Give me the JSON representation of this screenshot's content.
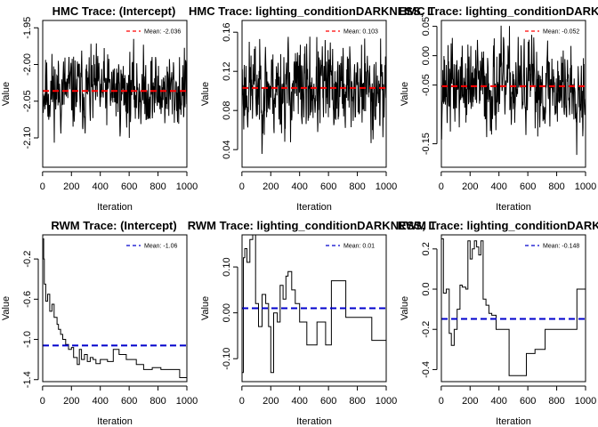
{
  "colors": {
    "hmc_mean": "#ff0000",
    "rwm_mean": "#0000cc",
    "trace": "#000000"
  },
  "chart_data": [
    {
      "type": "line",
      "title": "HMC Trace: (Intercept)",
      "xlabel": "Iteration",
      "ylabel": "Value",
      "xlim": [
        1,
        1000
      ],
      "ylim": [
        -2.14,
        -1.94
      ],
      "xticks": [
        "0",
        "200",
        "400",
        "600",
        "800",
        "1000"
      ],
      "yticks": [
        "-1.95",
        "-2.00",
        "-2.05",
        "-2.10"
      ],
      "ytick_values": [
        -1.95,
        -2.0,
        -2.05,
        -2.1
      ],
      "legend": "Mean: -2.036",
      "mean": -2.036,
      "mean_style": "dashed-red",
      "trace": {
        "kind": "noise",
        "center": -2.036,
        "spread": 0.024,
        "min": -2.135,
        "max": -1.94,
        "seed": 11
      }
    },
    {
      "type": "line",
      "title": "HMC Trace: lighting_conditionDARKNESS, L",
      "xlabel": "Iteration",
      "ylabel": "Value",
      "xlim": [
        1,
        1000
      ],
      "ylim": [
        0.022,
        0.172
      ],
      "xticks": [
        "0",
        "200",
        "400",
        "600",
        "800",
        "1000"
      ],
      "yticks": [
        "0.04",
        "0.08",
        "0.12",
        "0.16"
      ],
      "ytick_values": [
        0.04,
        0.08,
        0.12,
        0.16
      ],
      "legend": "Mean: 0.103",
      "mean": 0.103,
      "mean_style": "dashed-red",
      "trace": {
        "kind": "noise",
        "center": 0.103,
        "spread": 0.022,
        "min": 0.028,
        "max": 0.168,
        "seed": 23
      }
    },
    {
      "type": "line",
      "title": "HMC Trace: lighting_conditionDARKNESS, L",
      "xlabel": "Iteration",
      "ylabel": "Value",
      "xlim": [
        1,
        1000
      ],
      "ylim": [
        -0.19,
        0.06
      ],
      "xticks": [
        "0",
        "200",
        "400",
        "600",
        "800",
        "1000"
      ],
      "yticks": [
        "-0.15",
        "-0.05",
        "0.00",
        "0.05"
      ],
      "ytick_values": [
        -0.15,
        -0.05,
        0.0,
        0.05
      ],
      "legend": "Mean: -0.052",
      "mean": -0.052,
      "mean_style": "dashed-red",
      "trace": {
        "kind": "noise",
        "center": -0.052,
        "spread": 0.035,
        "min": -0.185,
        "max": 0.055,
        "seed": 37
      }
    },
    {
      "type": "line",
      "title": "RWM Trace: (Intercept)",
      "xlabel": "Iteration",
      "ylabel": "Value",
      "xlim": [
        1,
        1000
      ],
      "ylim": [
        -1.42,
        0.04
      ],
      "xticks": [
        "0",
        "200",
        "400",
        "600",
        "800",
        "1000"
      ],
      "yticks": [
        "-0.2",
        "-0.6",
        "-1.0",
        "-1.4"
      ],
      "ytick_values": [
        -0.2,
        -0.6,
        -1.0,
        -1.4
      ],
      "legend": "Mean: -1.06",
      "mean": -1.06,
      "mean_style": "dashed-blue",
      "trace": {
        "kind": "steps",
        "points": [
          [
            1,
            0.0
          ],
          [
            8,
            -0.2
          ],
          [
            12,
            -0.45
          ],
          [
            22,
            -0.62
          ],
          [
            35,
            -0.55
          ],
          [
            50,
            -0.72
          ],
          [
            65,
            -0.65
          ],
          [
            80,
            -0.78
          ],
          [
            100,
            -0.85
          ],
          [
            110,
            -0.9
          ],
          [
            125,
            -0.95
          ],
          [
            140,
            -1.0
          ],
          [
            160,
            -1.05
          ],
          [
            180,
            -1.1
          ],
          [
            200,
            -1.08
          ],
          [
            215,
            -1.18
          ],
          [
            240,
            -1.25
          ],
          [
            255,
            -1.1
          ],
          [
            270,
            -1.2
          ],
          [
            290,
            -1.15
          ],
          [
            310,
            -1.22
          ],
          [
            330,
            -1.18
          ],
          [
            350,
            -1.2
          ],
          [
            370,
            -1.24
          ],
          [
            400,
            -1.2
          ],
          [
            450,
            -1.22
          ],
          [
            490,
            -1.1
          ],
          [
            530,
            -1.15
          ],
          [
            580,
            -1.2
          ],
          [
            620,
            -1.2
          ],
          [
            650,
            -1.25
          ],
          [
            700,
            -1.3
          ],
          [
            760,
            -1.28
          ],
          [
            820,
            -1.3
          ],
          [
            890,
            -1.3
          ],
          [
            950,
            -1.38
          ],
          [
            1000,
            -1.38
          ]
        ]
      }
    },
    {
      "type": "line",
      "title": "RWM Trace: lighting_conditionDARKNESS, L",
      "xlabel": "Iteration",
      "ylabel": "Value",
      "xlim": [
        1,
        1000
      ],
      "ylim": [
        -0.15,
        0.17
      ],
      "xticks": [
        "0",
        "200",
        "400",
        "600",
        "800",
        "1000"
      ],
      "yticks": [
        "-0.10",
        "0.00",
        "0.10"
      ],
      "ytick_values": [
        -0.1,
        0.0,
        0.1
      ],
      "legend": "Mean: 0.01",
      "mean": 0.01,
      "mean_style": "dashed-blue",
      "trace": {
        "kind": "steps",
        "points": [
          [
            1,
            -0.13
          ],
          [
            10,
            0.12
          ],
          [
            20,
            0.14
          ],
          [
            35,
            0.11
          ],
          [
            55,
            0.16
          ],
          [
            75,
            0.17
          ],
          [
            95,
            0.02
          ],
          [
            115,
            -0.03
          ],
          [
            140,
            0.04
          ],
          [
            165,
            0.02
          ],
          [
            185,
            -0.03
          ],
          [
            200,
            -0.13
          ],
          [
            220,
            0.0
          ],
          [
            245,
            -0.02
          ],
          [
            265,
            0.06
          ],
          [
            285,
            0.03
          ],
          [
            305,
            0.08
          ],
          [
            320,
            0.09
          ],
          [
            345,
            0.05
          ],
          [
            370,
            0.02
          ],
          [
            400,
            -0.02
          ],
          [
            450,
            -0.07
          ],
          [
            520,
            -0.02
          ],
          [
            580,
            -0.07
          ],
          [
            620,
            0.07
          ],
          [
            720,
            -0.01
          ],
          [
            850,
            -0.01
          ],
          [
            900,
            -0.06
          ],
          [
            1000,
            -0.06
          ]
        ]
      }
    },
    {
      "type": "line",
      "title": "RWM Trace: lighting_conditionDARKNESS, L",
      "xlabel": "Iteration",
      "ylabel": "Value",
      "xlim": [
        1,
        1000
      ],
      "ylim": [
        -0.46,
        0.27
      ],
      "xticks": [
        "0",
        "200",
        "400",
        "600",
        "800",
        "1000"
      ],
      "yticks": [
        "-0.4",
        "-0.2",
        "0.0",
        "0.2"
      ],
      "ytick_values": [
        -0.4,
        -0.2,
        0.0,
        0.2
      ],
      "legend": "Mean: -0.148",
      "mean": -0.148,
      "mean_style": "dashed-blue",
      "trace": {
        "kind": "steps",
        "points": [
          [
            1,
            0.25
          ],
          [
            15,
            -0.02
          ],
          [
            35,
            0.0
          ],
          [
            55,
            -0.22
          ],
          [
            70,
            -0.28
          ],
          [
            90,
            -0.2
          ],
          [
            110,
            -0.1
          ],
          [
            130,
            0.02
          ],
          [
            145,
            0.01
          ],
          [
            170,
            0.0
          ],
          [
            185,
            0.24
          ],
          [
            200,
            0.15
          ],
          [
            215,
            0.2
          ],
          [
            230,
            0.24
          ],
          [
            245,
            0.21
          ],
          [
            260,
            0.17
          ],
          [
            275,
            0.24
          ],
          [
            290,
            -0.05
          ],
          [
            310,
            -0.08
          ],
          [
            330,
            -0.12
          ],
          [
            350,
            -0.13
          ],
          [
            380,
            -0.2
          ],
          [
            400,
            -0.2
          ],
          [
            470,
            -0.43
          ],
          [
            590,
            -0.32
          ],
          [
            650,
            -0.3
          ],
          [
            720,
            -0.2
          ],
          [
            800,
            -0.2
          ],
          [
            850,
            -0.2
          ],
          [
            900,
            -0.2
          ],
          [
            940,
            0.0
          ],
          [
            1000,
            0.0
          ]
        ]
      }
    }
  ]
}
